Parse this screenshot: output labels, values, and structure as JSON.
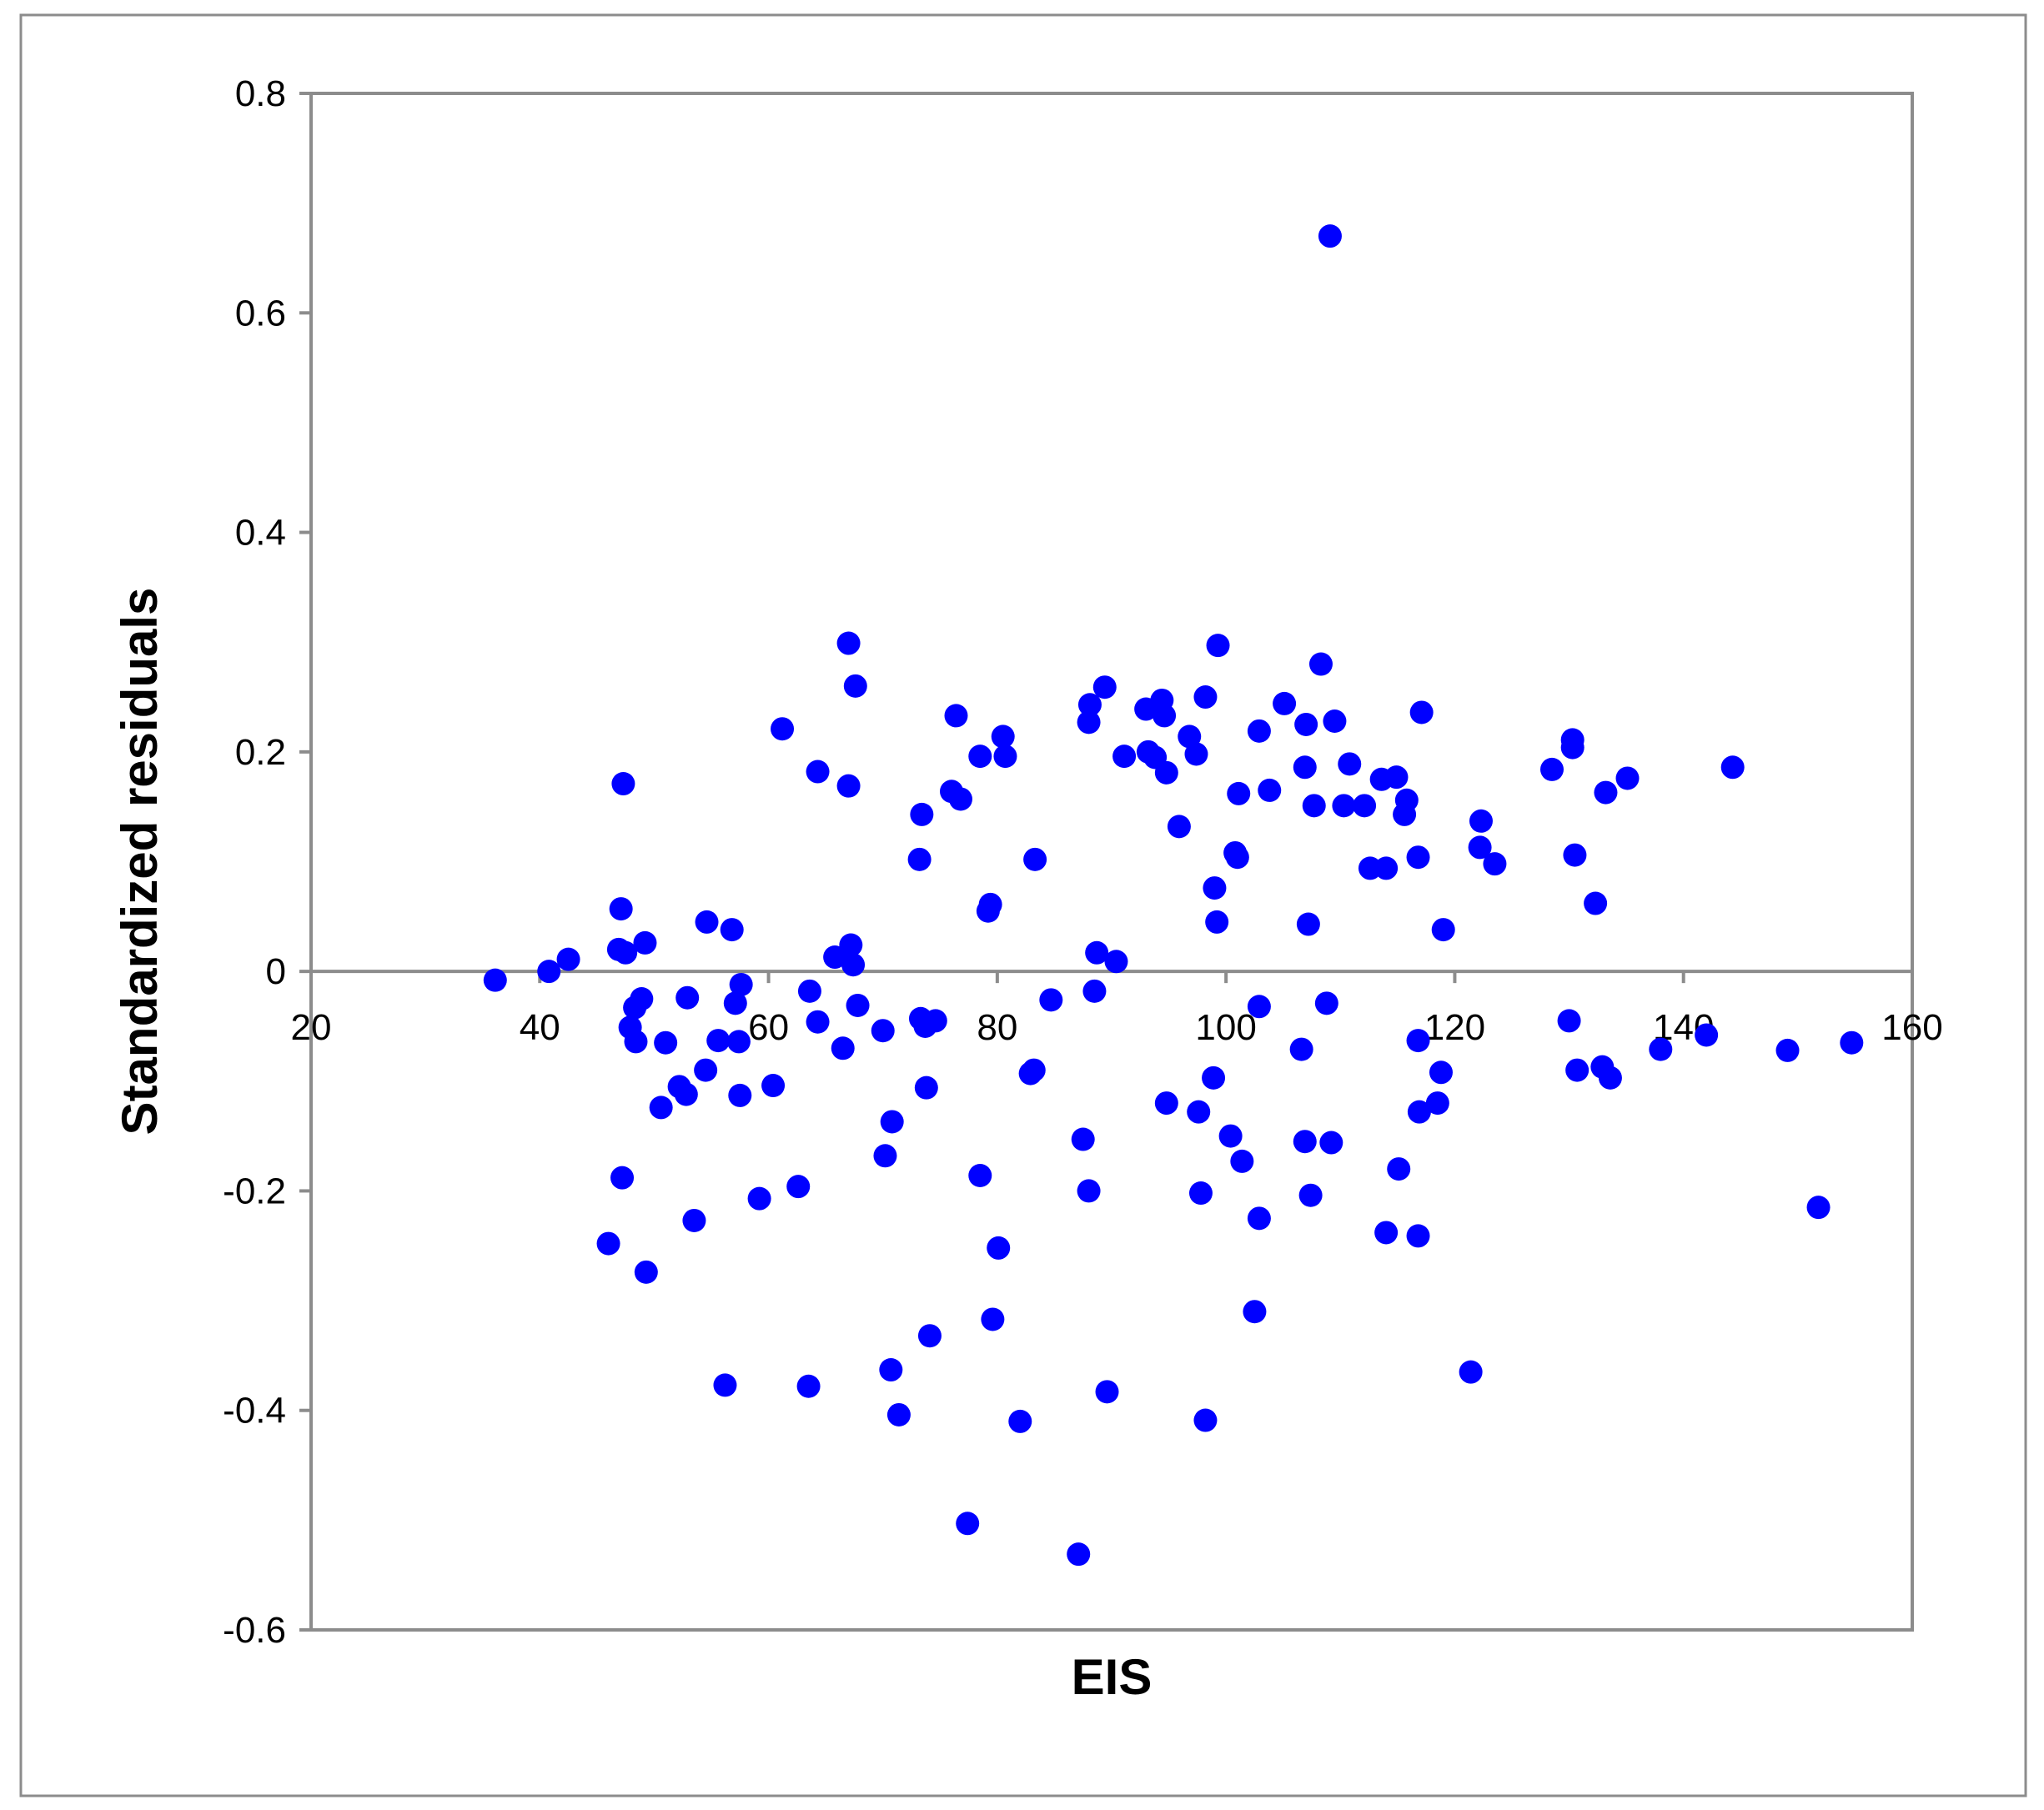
{
  "chart_data": {
    "type": "scatter",
    "title": "",
    "xlabel": "EIS",
    "ylabel": "Standardized residuals",
    "xlim": [
      20,
      160
    ],
    "ylim": [
      -0.6,
      0.8
    ],
    "x_ticks": [
      "20",
      "40",
      "60",
      "80",
      "100",
      "120",
      "140",
      "160"
    ],
    "y_ticks": [
      "-0.6",
      "-0.4",
      "-0.2",
      "0",
      "0.2",
      "0.4",
      "0.6",
      "0.8"
    ],
    "grid": false,
    "legend": "none",
    "marker_color": "#0000ff",
    "series": [
      {
        "points": [
          [
            36.1,
            -0.008
          ],
          [
            40.8,
            0.0
          ],
          [
            42.5,
            0.011
          ],
          [
            46.0,
            -0.248
          ],
          [
            47.1,
            0.057
          ],
          [
            46.9,
            0.02
          ],
          [
            47.5,
            0.017
          ],
          [
            47.3,
            0.171
          ],
          [
            47.2,
            -0.188
          ],
          [
            48.3,
            -0.033
          ],
          [
            47.9,
            -0.051
          ],
          [
            48.4,
            -0.064
          ],
          [
            48.9,
            -0.025
          ],
          [
            49.2,
            0.026
          ],
          [
            49.3,
            -0.274
          ],
          [
            50.6,
            -0.124
          ],
          [
            51.0,
            -0.065
          ],
          [
            52.2,
            -0.105
          ],
          [
            52.8,
            -0.112
          ],
          [
            52.9,
            -0.024
          ],
          [
            53.5,
            -0.227
          ],
          [
            54.6,
            0.045
          ],
          [
            54.5,
            -0.09
          ],
          [
            55.6,
            -0.063
          ],
          [
            56.2,
            -0.377
          ],
          [
            56.8,
            0.038
          ],
          [
            57.1,
            -0.029
          ],
          [
            57.4,
            -0.064
          ],
          [
            57.6,
            -0.012
          ],
          [
            57.5,
            -0.113
          ],
          [
            59.2,
            -0.207
          ],
          [
            60.4,
            -0.104
          ],
          [
            61.2,
            0.221
          ],
          [
            62.6,
            -0.196
          ],
          [
            63.6,
            -0.018
          ],
          [
            63.5,
            -0.378
          ],
          [
            64.3,
            0.182
          ],
          [
            64.3,
            -0.046
          ],
          [
            65.8,
            0.013
          ],
          [
            66.5,
            -0.07
          ],
          [
            67.0,
            0.299
          ],
          [
            67.0,
            0.169
          ],
          [
            67.2,
            0.024
          ],
          [
            67.4,
            0.006
          ],
          [
            67.6,
            0.26
          ],
          [
            67.8,
            -0.031
          ],
          [
            70.0,
            -0.054
          ],
          [
            70.2,
            -0.168
          ],
          [
            70.8,
            -0.137
          ],
          [
            70.7,
            -0.363
          ],
          [
            71.4,
            -0.404
          ],
          [
            73.2,
            0.102
          ],
          [
            73.4,
            0.143
          ],
          [
            73.3,
            -0.043
          ],
          [
            73.7,
            -0.05
          ],
          [
            73.8,
            -0.106
          ],
          [
            74.1,
            -0.332
          ],
          [
            74.6,
            -0.045
          ],
          [
            76.0,
            0.164
          ],
          [
            76.4,
            0.233
          ],
          [
            76.8,
            0.157
          ],
          [
            77.4,
            -0.503
          ],
          [
            78.5,
            0.196
          ],
          [
            78.5,
            -0.186
          ],
          [
            79.2,
            0.055
          ],
          [
            79.4,
            0.061
          ],
          [
            79.6,
            -0.317
          ],
          [
            80.1,
            -0.252
          ],
          [
            80.5,
            0.214
          ],
          [
            80.7,
            0.196
          ],
          [
            82.0,
            -0.41
          ],
          [
            82.9,
            -0.093
          ],
          [
            83.2,
            -0.09
          ],
          [
            83.3,
            0.102
          ],
          [
            84.7,
            -0.026
          ],
          [
            87.1,
            -0.531
          ],
          [
            87.5,
            -0.153
          ],
          [
            88.1,
            0.243
          ],
          [
            88.0,
            0.227
          ],
          [
            88.0,
            -0.2
          ],
          [
            88.5,
            -0.018
          ],
          [
            88.7,
            0.017
          ],
          [
            89.4,
            0.259
          ],
          [
            89.6,
            -0.383
          ],
          [
            90.4,
            0.009
          ],
          [
            91.1,
            0.196
          ],
          [
            93.0,
            0.239
          ],
          [
            93.2,
            0.2
          ],
          [
            93.8,
            0.195
          ],
          [
            94.4,
            0.247
          ],
          [
            94.6,
            0.233
          ],
          [
            94.8,
            0.181
          ],
          [
            94.8,
            -0.12
          ],
          [
            95.9,
            0.132
          ],
          [
            96.8,
            0.214
          ],
          [
            97.4,
            0.198
          ],
          [
            97.6,
            -0.128
          ],
          [
            97.8,
            -0.202
          ],
          [
            98.2,
            0.25
          ],
          [
            98.2,
            -0.409
          ],
          [
            98.9,
            -0.097
          ],
          [
            99.0,
            0.076
          ],
          [
            99.2,
            0.045
          ],
          [
            99.3,
            0.297
          ],
          [
            100.4,
            -0.15
          ],
          [
            100.8,
            0.108
          ],
          [
            101.0,
            0.104
          ],
          [
            101.1,
            0.162
          ],
          [
            101.4,
            -0.173
          ],
          [
            102.5,
            -0.31
          ],
          [
            102.9,
            0.219
          ],
          [
            102.9,
            -0.032
          ],
          [
            102.9,
            -0.225
          ],
          [
            103.8,
            0.165
          ],
          [
            105.1,
            0.244
          ],
          [
            106.6,
            -0.071
          ],
          [
            106.9,
            0.186
          ],
          [
            107.0,
            0.225
          ],
          [
            106.9,
            -0.155
          ],
          [
            107.2,
            0.043
          ],
          [
            107.4,
            -0.204
          ],
          [
            107.7,
            0.151
          ],
          [
            108.3,
            0.28
          ],
          [
            108.8,
            -0.029
          ],
          [
            109.1,
            0.67
          ],
          [
            109.2,
            -0.156
          ],
          [
            109.5,
            0.228
          ],
          [
            110.3,
            0.151
          ],
          [
            110.8,
            0.189
          ],
          [
            112.1,
            0.151
          ],
          [
            112.6,
            0.094
          ],
          [
            113.6,
            0.175
          ],
          [
            114.0,
            0.094
          ],
          [
            114.0,
            -0.238
          ],
          [
            114.9,
            0.177
          ],
          [
            115.1,
            -0.18
          ],
          [
            115.6,
            0.143
          ],
          [
            115.8,
            0.156
          ],
          [
            116.8,
            -0.063
          ],
          [
            116.8,
            0.104
          ],
          [
            116.9,
            -0.128
          ],
          [
            116.8,
            -0.241
          ],
          [
            117.1,
            0.236
          ],
          [
            118.5,
            -0.12
          ],
          [
            118.8,
            -0.092
          ],
          [
            119.0,
            0.038
          ],
          [
            121.4,
            -0.365
          ],
          [
            122.2,
            0.113
          ],
          [
            122.3,
            0.137
          ],
          [
            123.5,
            0.098
          ],
          [
            128.5,
            0.184
          ],
          [
            130.0,
            -0.045
          ],
          [
            130.3,
            0.211
          ],
          [
            130.3,
            0.204
          ],
          [
            130.5,
            0.106
          ],
          [
            130.7,
            -0.09
          ],
          [
            132.3,
            0.062
          ],
          [
            132.9,
            -0.087
          ],
          [
            133.2,
            0.163
          ],
          [
            133.6,
            -0.097
          ],
          [
            135.1,
            0.176
          ],
          [
            138.0,
            -0.071
          ],
          [
            142.0,
            -0.058
          ],
          [
            144.3,
            0.186
          ],
          [
            149.1,
            -0.072
          ],
          [
            151.8,
            -0.215
          ],
          [
            154.7,
            -0.065
          ]
        ]
      }
    ]
  }
}
